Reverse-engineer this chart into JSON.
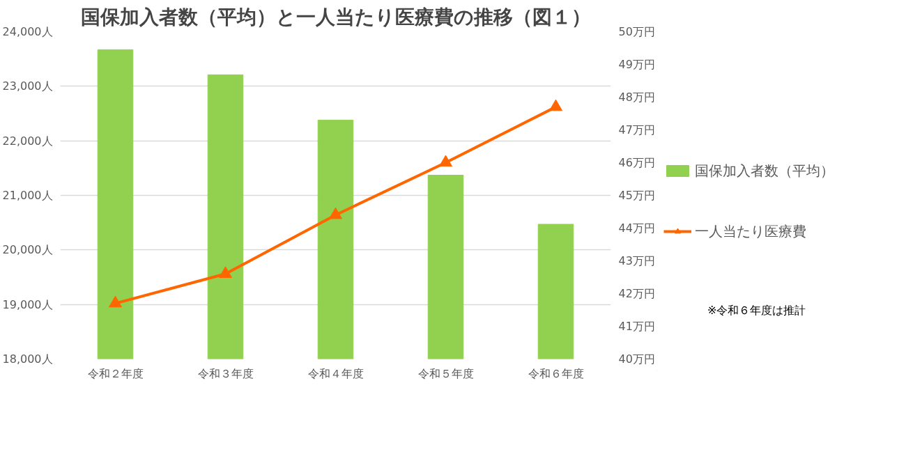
{
  "chart_data": {
    "type": "bar",
    "title": "国保加入者数（平均）と一人当たり医療費の推移（図１）",
    "categories": [
      "令和２年度",
      "令和３年度",
      "令和４年度",
      "令和５年度",
      "令和６年度"
    ],
    "series": [
      {
        "name": "国保加入者数（平均）",
        "color": "#92d050",
        "values": [
          23670,
          23210,
          22380,
          21370,
          20470
        ]
      },
      {
        "name": "一人当たり医療費",
        "type": "line",
        "axis": "y2",
        "color": "#ff6600",
        "marker": "triangle",
        "values": [
          41.7,
          42.6,
          44.4,
          46.0,
          47.7
        ]
      }
    ],
    "ylim": [
      18000,
      24000
    ],
    "yticks": [
      {
        "value": 18000,
        "label": "18,000人"
      },
      {
        "value": 19000,
        "label": "19,000人"
      },
      {
        "value": 20000,
        "label": "20,000人"
      },
      {
        "value": 21000,
        "label": "21,000人"
      },
      {
        "value": 22000,
        "label": "22,000人"
      },
      {
        "value": 23000,
        "label": "23,000人"
      },
      {
        "value": 24000,
        "label": "24,000人"
      }
    ],
    "y2lim": [
      40,
      50
    ],
    "y2ticks": [
      {
        "value": 40,
        "label": "40万円"
      },
      {
        "value": 41,
        "label": "41万円"
      },
      {
        "value": 42,
        "label": "42万円"
      },
      {
        "value": 43,
        "label": "43万円"
      },
      {
        "value": 44,
        "label": "44万円"
      },
      {
        "value": 45,
        "label": "45万円"
      },
      {
        "value": 46,
        "label": "46万円"
      },
      {
        "value": 47,
        "label": "47万円"
      },
      {
        "value": 48,
        "label": "48万円"
      },
      {
        "value": 49,
        "label": "49万円"
      },
      {
        "value": 50,
        "label": "50万円"
      }
    ],
    "grid": "y",
    "legend": "right",
    "annotations": [
      "※令和６年度は推計"
    ]
  }
}
